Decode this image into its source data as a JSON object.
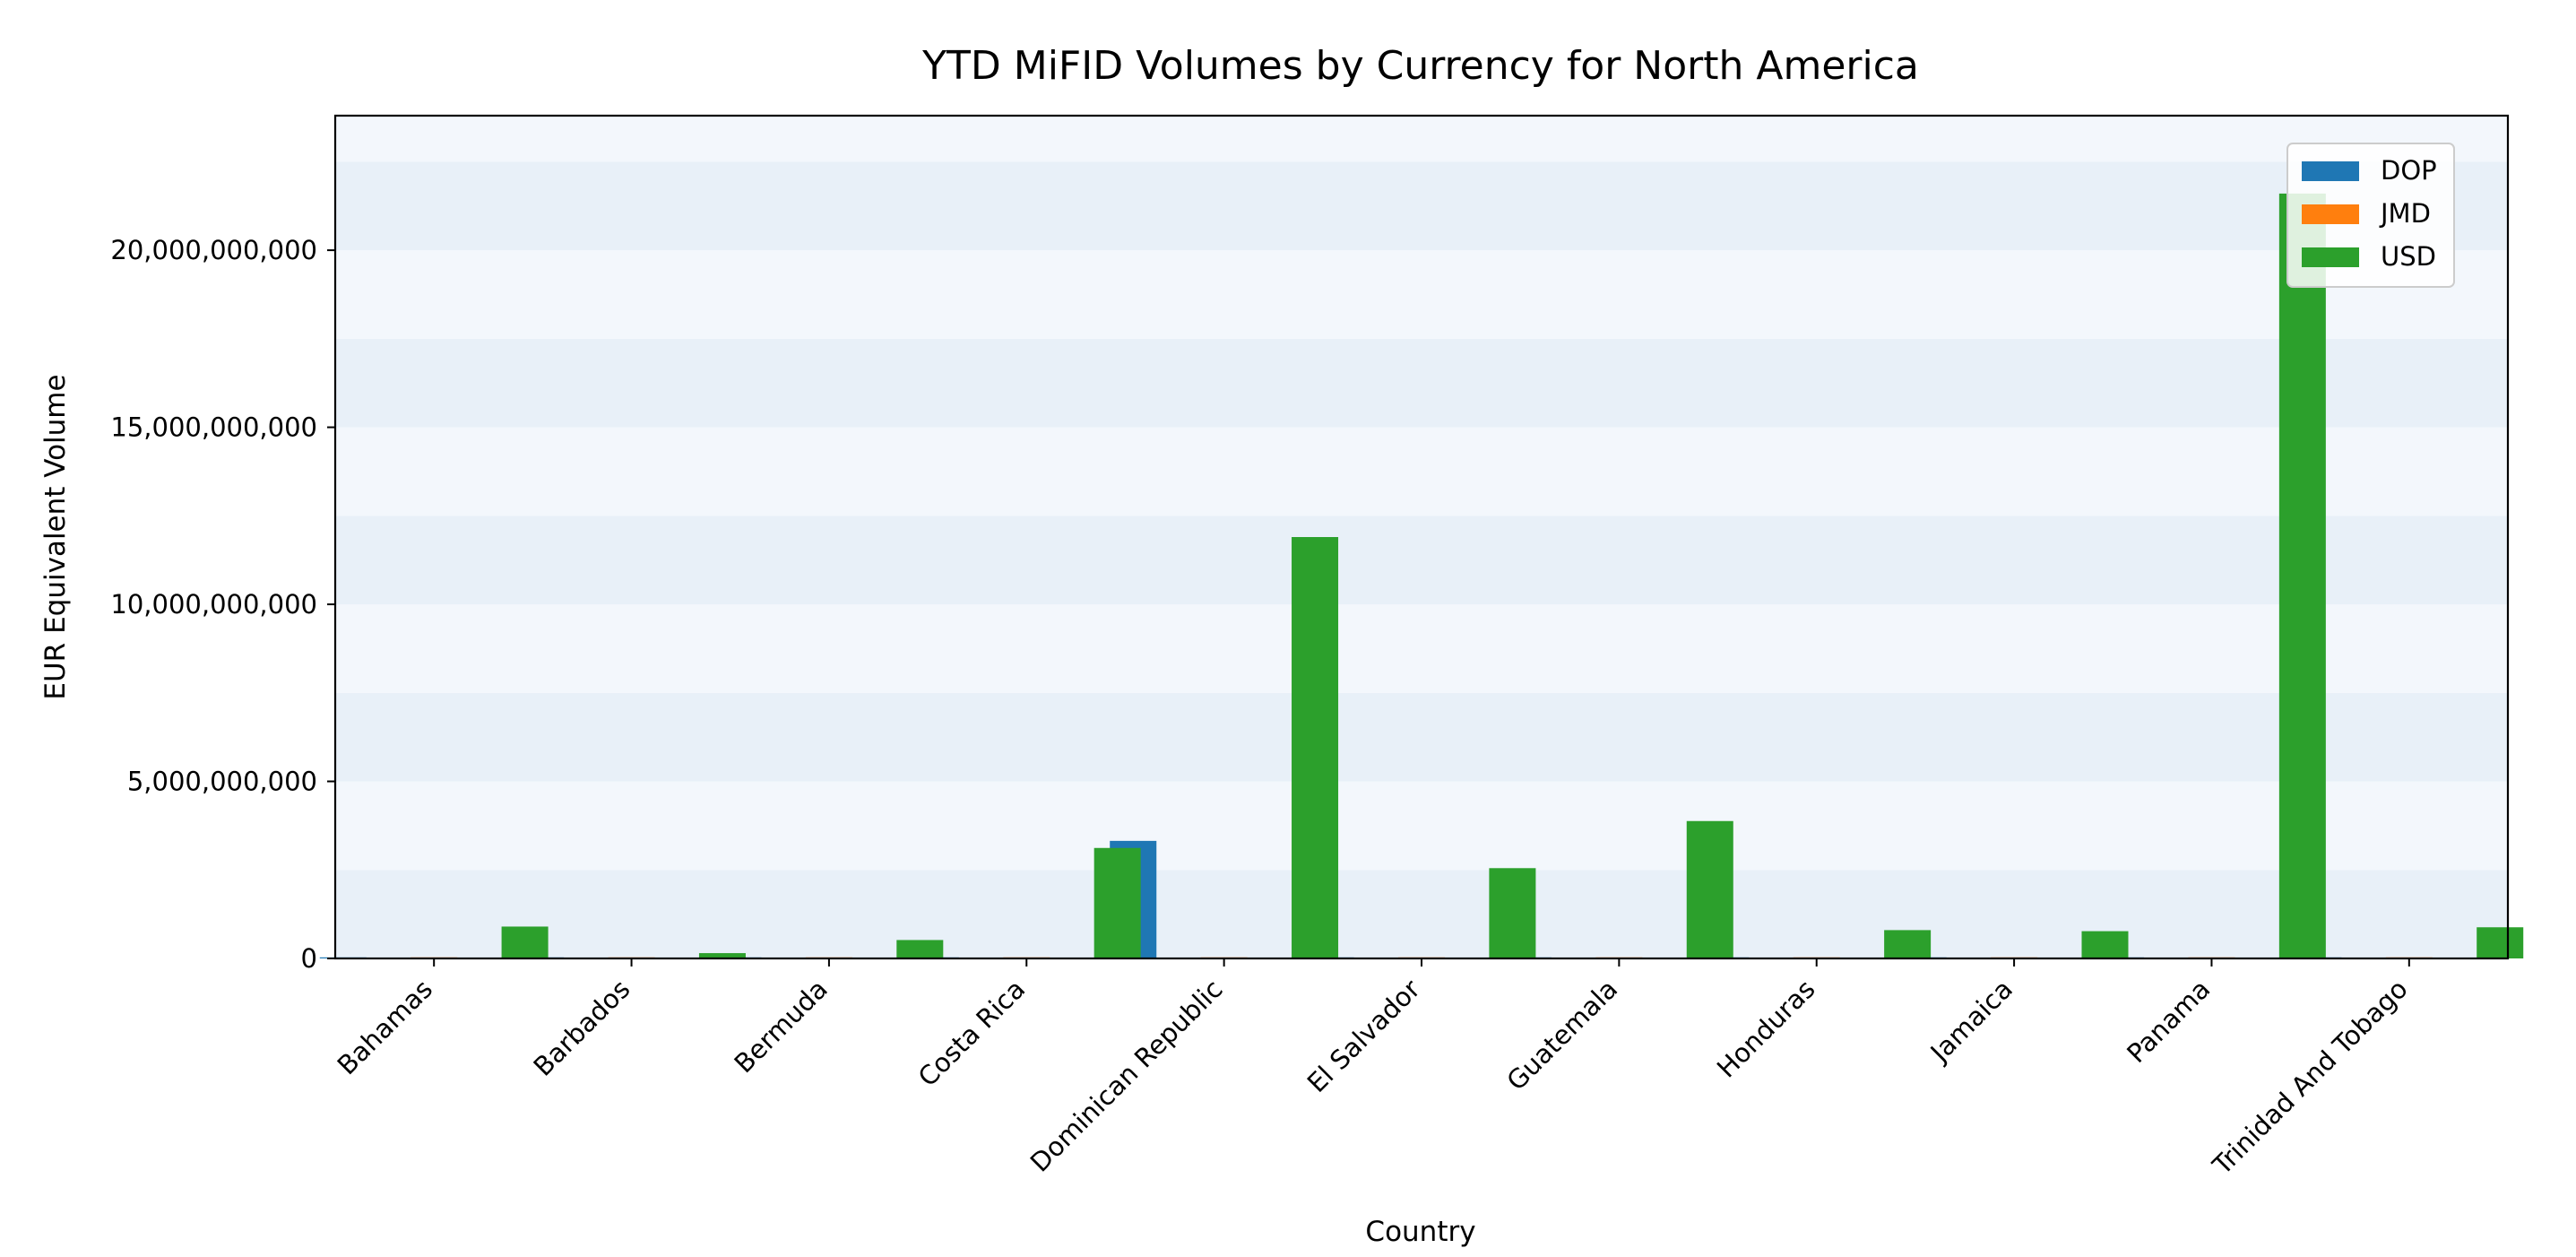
{
  "chart_data": {
    "type": "bar",
    "title": "YTD MiFID Volumes by Currency for North America",
    "xlabel": "Country",
    "ylabel": "EUR Equivalent Volume",
    "ylim": [
      0,
      23800000000
    ],
    "yticks": [
      0,
      5000000000,
      10000000000,
      15000000000,
      20000000000
    ],
    "ytick_labels": [
      "0",
      "5,000,000,000",
      "10,000,000,000",
      "15,000,000,000",
      "20,000,000,000"
    ],
    "grid": false,
    "legend_position": "top-right",
    "categories": [
      "Bahamas",
      "Barbados",
      "Bermuda",
      "Costa Rica",
      "Dominican Republic",
      "El Salvador",
      "Guatemala",
      "Honduras",
      "Jamaica",
      "Panama",
      "Trinidad And Tobago"
    ],
    "series": [
      {
        "name": "DOP",
        "color": "#1f77b4",
        "values": [
          0,
          0,
          0,
          0,
          3320000000,
          0,
          0,
          0,
          0,
          0,
          0
        ]
      },
      {
        "name": "JMD",
        "color": "#ff7f0e",
        "values": [
          0,
          0,
          0,
          0,
          0,
          0,
          0,
          0,
          0,
          0,
          0
        ]
      },
      {
        "name": "USD",
        "color": "#2ca02c",
        "values": [
          900000000,
          150000000,
          520000000,
          3120000000,
          11900000000,
          2550000000,
          3880000000,
          800000000,
          770000000,
          21600000000,
          880000000
        ]
      }
    ],
    "band_colors": [
      "#e8f0f8",
      "#f3f7fc"
    ]
  }
}
